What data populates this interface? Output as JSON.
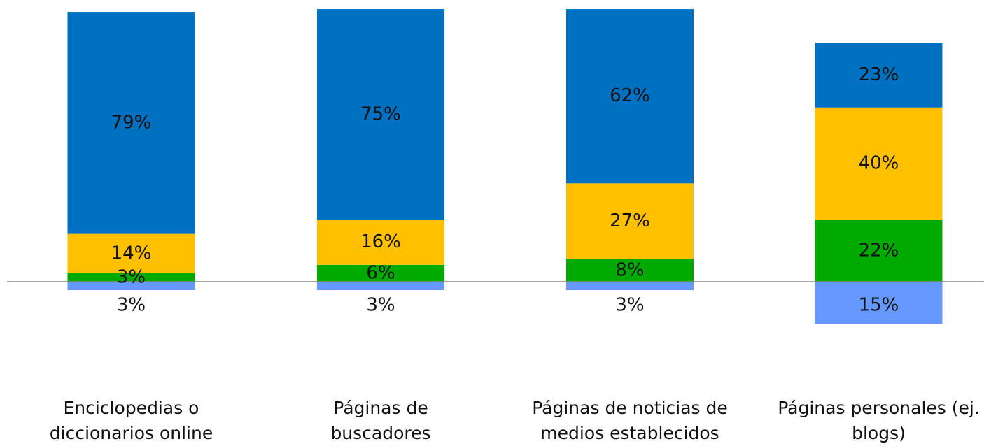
{
  "chart_data": {
    "type": "bar",
    "stacked": true,
    "categories": [
      "Enciclopedias o diccionarios online",
      "Páginas de buscadores",
      "Páginas de noticias de medios establecidos",
      "Páginas personales (ej. blogs)"
    ],
    "series": [
      {
        "color": "#6699ff",
        "values": [
          3,
          3,
          3,
          15
        ],
        "value_labels": [
          "3%",
          "3%",
          "3%",
          "15%"
        ]
      },
      {
        "color": "#00aa00",
        "values": [
          3,
          6,
          8,
          22
        ],
        "value_labels": [
          "3%",
          "6%",
          "8%",
          "22%"
        ]
      },
      {
        "color": "#ffc000",
        "values": [
          14,
          16,
          27,
          40
        ],
        "value_labels": [
          "14%",
          "16%",
          "27%",
          "40%"
        ]
      },
      {
        "color": "#0070c0",
        "values": [
          79,
          75,
          62,
          23
        ],
        "value_labels": [
          "79%",
          "75%",
          "62%",
          "23%"
        ]
      }
    ]
  }
}
